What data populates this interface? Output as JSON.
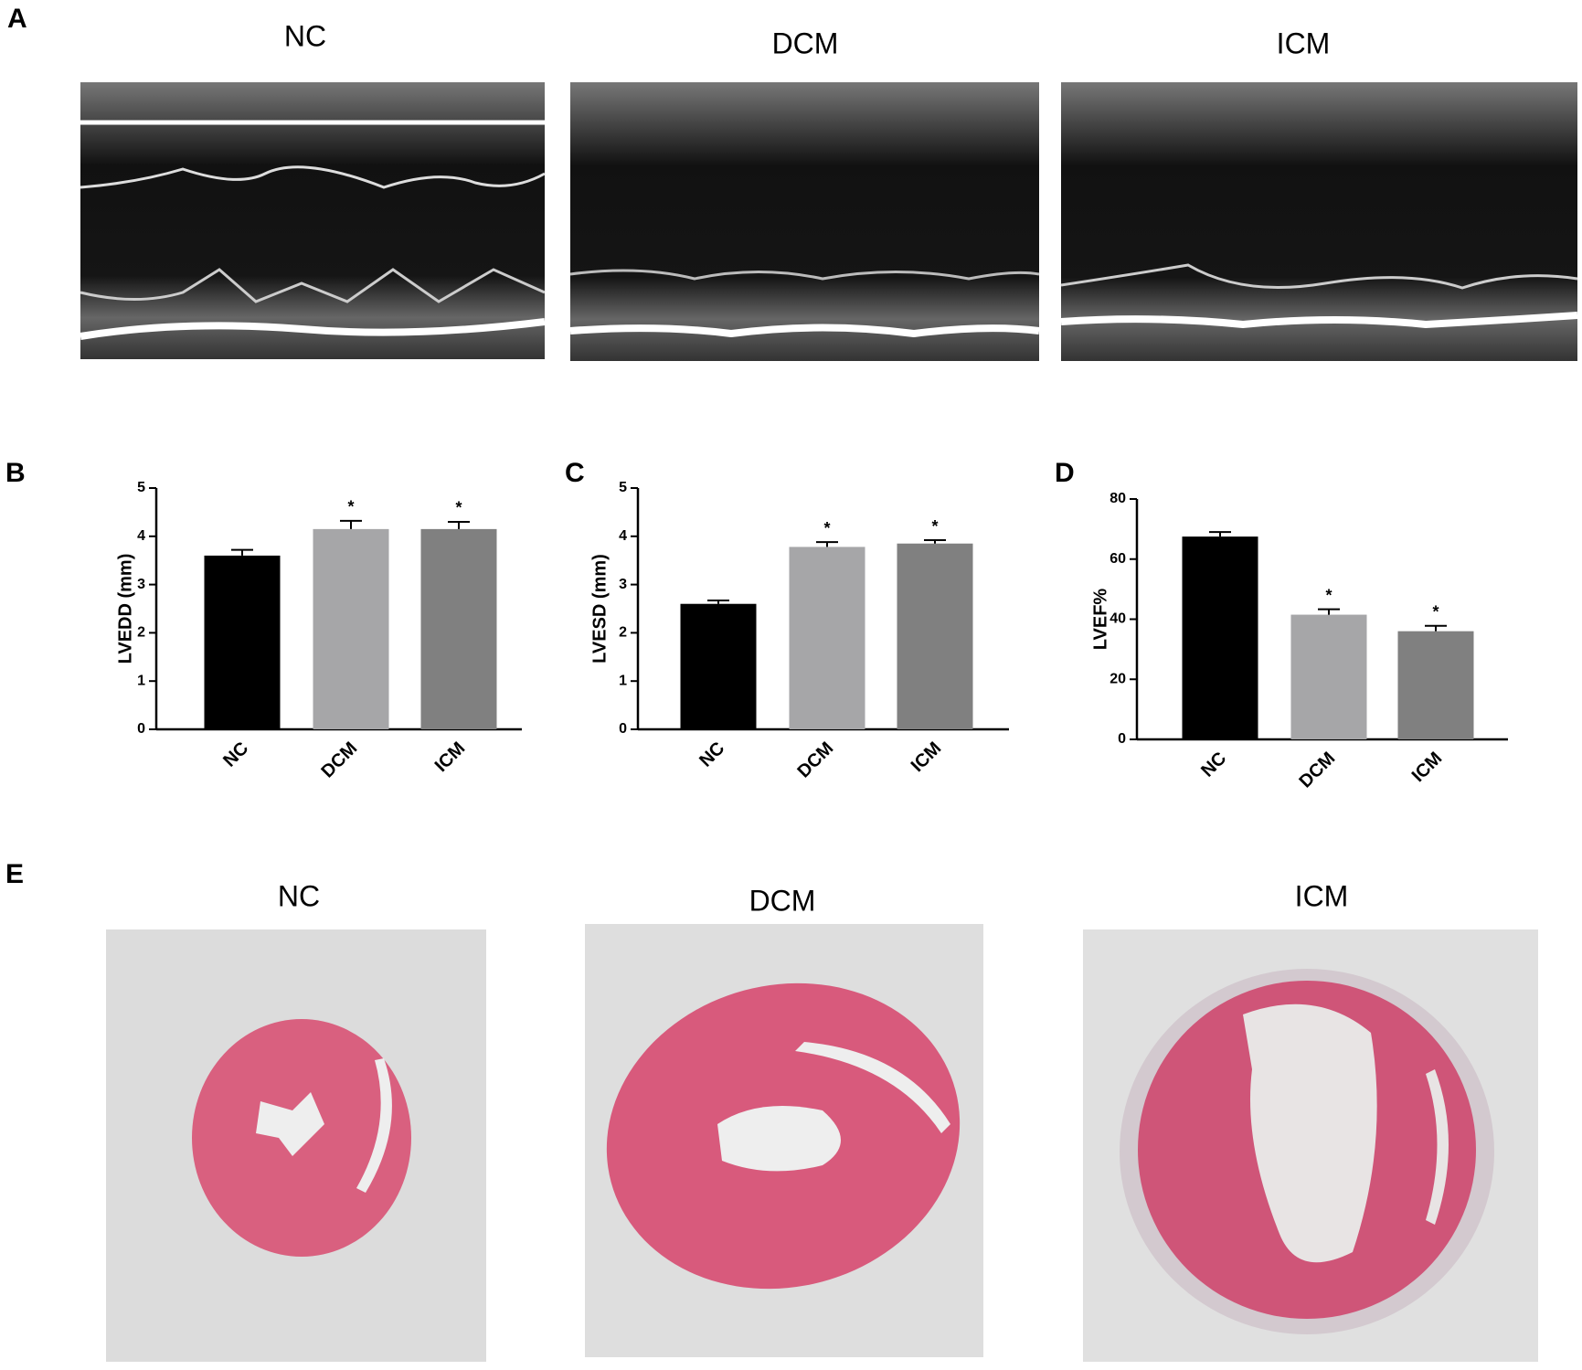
{
  "figure": {
    "panel_labels": [
      "A",
      "B",
      "C",
      "D",
      "E"
    ],
    "echo_titles": [
      "NC",
      "DCM",
      "ICM"
    ],
    "histology_titles": [
      "NC",
      "DCM",
      "ICM"
    ]
  },
  "chart_data": [
    {
      "type": "bar",
      "ylabel": "LVEDD (mm)",
      "categories": [
        "NC",
        "DCM",
        "ICM"
      ],
      "values": [
        3.6,
        4.15,
        4.15
      ],
      "errors": [
        0.12,
        0.17,
        0.15
      ],
      "significance": [
        null,
        "*",
        "*"
      ],
      "colors": [
        "#000000",
        "#a6a6a8",
        "#808080"
      ],
      "ylim": [
        0,
        5
      ],
      "yticks": [
        0,
        1,
        2,
        3,
        4,
        5
      ]
    },
    {
      "type": "bar",
      "ylabel": "LVESD (mm)",
      "categories": [
        "NC",
        "DCM",
        "ICM"
      ],
      "values": [
        2.6,
        3.78,
        3.85
      ],
      "errors": [
        0.07,
        0.1,
        0.07
      ],
      "significance": [
        null,
        "*",
        "*"
      ],
      "colors": [
        "#000000",
        "#a6a6a8",
        "#808080"
      ],
      "ylim": [
        0,
        5
      ],
      "yticks": [
        0,
        1,
        2,
        3,
        4,
        5
      ]
    },
    {
      "type": "bar",
      "ylabel": "LVEF%",
      "categories": [
        "NC",
        "DCM",
        "ICM"
      ],
      "values": [
        67.5,
        41.5,
        36
      ],
      "errors": [
        1.5,
        1.8,
        1.8
      ],
      "significance": [
        null,
        "*",
        "*"
      ],
      "colors": [
        "#000000",
        "#a6a6a8",
        "#808080"
      ],
      "ylim": [
        0,
        80
      ],
      "yticks": [
        0,
        20,
        40,
        60,
        80
      ]
    }
  ]
}
